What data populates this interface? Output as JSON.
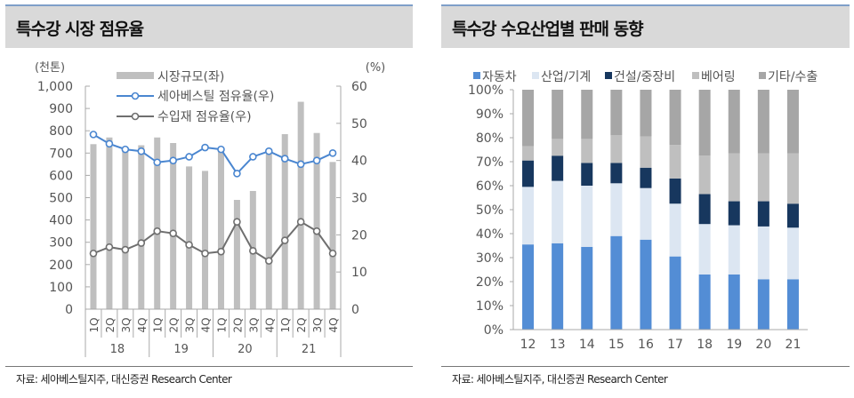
{
  "left": {
    "title": "특수강 시장 점유율",
    "source": "자료: 세아베스틸지주, 대신증권 Research Center"
  },
  "right": {
    "title": "특수강 수요산업별 판매 동향",
    "source": "자료: 세아베스틸지주, 대신증권 Research Center"
  },
  "chart_data": [
    {
      "type": "bar+line",
      "title": "특수강 시장 점유율",
      "y_left_unit": "(천톤)",
      "y_right_unit": "(%)",
      "ylim_left": [
        0,
        1000
      ],
      "ylim_right": [
        0,
        60
      ],
      "yticks_left": [
        "0",
        "100",
        "200",
        "300",
        "400",
        "500",
        "600",
        "700",
        "800",
        "900",
        "1,000"
      ],
      "yticks_right": [
        "0",
        "10",
        "20",
        "30",
        "40",
        "50",
        "60"
      ],
      "quarters": [
        "1Q",
        "2Q",
        "3Q",
        "4Q",
        "1Q",
        "2Q",
        "3Q",
        "4Q",
        "1Q",
        "2Q",
        "3Q",
        "4Q",
        "1Q",
        "2Q",
        "3Q",
        "4Q"
      ],
      "years": [
        "18",
        "19",
        "20",
        "21"
      ],
      "series": [
        {
          "name": "시장규모(좌)",
          "kind": "bar",
          "axis": "left",
          "color": "#bfbfbf",
          "values": [
            740,
            770,
            720,
            735,
            770,
            745,
            640,
            620,
            710,
            490,
            530,
            710,
            785,
            930,
            790,
            660
          ]
        },
        {
          "name": "세아베스틸 점유율(우)",
          "kind": "line",
          "axis": "right",
          "color": "#4a86d0",
          "values": [
            47,
            44.5,
            43,
            42.5,
            39.5,
            40,
            41,
            43.5,
            43,
            36.5,
            41,
            42.5,
            40.5,
            39,
            40,
            42
          ]
        },
        {
          "name": "수입재 점유율(우)",
          "kind": "line",
          "axis": "right",
          "color": "#6f6f6f",
          "values": [
            15,
            16.7,
            16,
            17.8,
            21,
            20.4,
            17.3,
            15,
            15.5,
            23.5,
            15.7,
            13,
            18.5,
            23.5,
            21,
            15
          ]
        }
      ]
    },
    {
      "type": "stacked-bar",
      "title": "특수강 수요산업별 판매 동향",
      "ylim": [
        0,
        100
      ],
      "yticks": [
        "0%",
        "10%",
        "20%",
        "30%",
        "40%",
        "50%",
        "60%",
        "70%",
        "80%",
        "90%",
        "100%"
      ],
      "categories": [
        "12",
        "13",
        "14",
        "15",
        "16",
        "17",
        "18",
        "19",
        "20",
        "21"
      ],
      "series": [
        {
          "name": "자동차",
          "color": "#538dd5",
          "values": [
            35.5,
            36,
            34.5,
            39,
            37.5,
            30.5,
            23,
            23,
            21,
            21
          ]
        },
        {
          "name": "산업/기계",
          "color": "#dce6f2",
          "values": [
            24,
            26,
            25.5,
            22,
            21.5,
            22,
            21,
            20.5,
            22,
            21.5
          ]
        },
        {
          "name": "건설/중장비",
          "color": "#17375e",
          "values": [
            11,
            10.5,
            9.5,
            8.5,
            8.5,
            10.5,
            12.5,
            10,
            10.5,
            10
          ]
        },
        {
          "name": "베어링",
          "color": "#bfbfbf",
          "values": [
            6,
            7,
            10,
            11.5,
            13,
            14,
            16,
            20,
            20,
            21
          ]
        },
        {
          "name": "기타/수출",
          "color": "#a6a6a6",
          "values": [
            23.5,
            20.5,
            20.5,
            19,
            19.5,
            23,
            27.5,
            26.5,
            26.5,
            26.5
          ]
        }
      ]
    }
  ]
}
